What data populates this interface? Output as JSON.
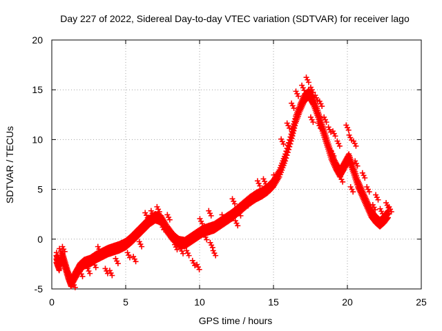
{
  "chart_data": {
    "type": "scatter",
    "title": "Day 227 of 2022, Sidereal Day-to-day VTEC variation (SDTVAR) for receiver lago",
    "xlabel": "GPS time / hours",
    "ylabel": "SDTVAR / TECUs",
    "xlim": [
      0,
      25
    ],
    "ylim": [
      -5,
      20
    ],
    "x_ticks": [
      0,
      5,
      10,
      15,
      20,
      25
    ],
    "y_ticks": [
      -5,
      0,
      5,
      10,
      15,
      20
    ],
    "grid": true,
    "marker": "+",
    "color": "#ff0000",
    "series": [
      {
        "name": "SDTVAR",
        "trace": [
          [
            0.3,
            -2.0
          ],
          [
            0.5,
            -2.8
          ],
          [
            0.7,
            -1.6
          ],
          [
            0.9,
            -2.6
          ],
          [
            1.1,
            -3.6
          ],
          [
            1.3,
            -4.4
          ],
          [
            1.6,
            -3.6
          ],
          [
            1.9,
            -2.8
          ],
          [
            2.2,
            -2.4
          ],
          [
            2.6,
            -2.2
          ],
          [
            3.0,
            -1.8
          ],
          [
            3.4,
            -1.5
          ],
          [
            3.8,
            -1.2
          ],
          [
            4.2,
            -1.0
          ],
          [
            4.6,
            -0.8
          ],
          [
            5.0,
            -0.5
          ],
          [
            5.4,
            0.0
          ],
          [
            5.8,
            0.6
          ],
          [
            6.2,
            1.2
          ],
          [
            6.6,
            1.8
          ],
          [
            7.0,
            2.2
          ],
          [
            7.4,
            2.0
          ],
          [
            7.8,
            1.0
          ],
          [
            8.2,
            0.2
          ],
          [
            8.6,
            -0.3
          ],
          [
            9.0,
            -0.4
          ],
          [
            9.4,
            0.0
          ],
          [
            9.8,
            0.4
          ],
          [
            10.2,
            0.8
          ],
          [
            10.6,
            1.0
          ],
          [
            11.0,
            1.2
          ],
          [
            11.4,
            1.6
          ],
          [
            11.8,
            2.0
          ],
          [
            12.2,
            2.4
          ],
          [
            12.6,
            2.9
          ],
          [
            13.0,
            3.4
          ],
          [
            13.4,
            3.9
          ],
          [
            13.8,
            4.3
          ],
          [
            14.2,
            4.6
          ],
          [
            14.6,
            5.0
          ],
          [
            15.0,
            5.6
          ],
          [
            15.4,
            6.6
          ],
          [
            15.8,
            8.2
          ],
          [
            16.2,
            10.2
          ],
          [
            16.5,
            12.0
          ],
          [
            16.8,
            13.2
          ],
          [
            17.1,
            14.2
          ],
          [
            17.4,
            14.6
          ],
          [
            17.7,
            13.8
          ],
          [
            18.0,
            12.6
          ],
          [
            18.3,
            11.2
          ],
          [
            18.6,
            9.8
          ],
          [
            18.9,
            8.4
          ],
          [
            19.2,
            7.4
          ],
          [
            19.5,
            6.6
          ],
          [
            19.8,
            7.4
          ],
          [
            20.1,
            8.2
          ],
          [
            20.4,
            7.0
          ],
          [
            20.7,
            5.6
          ],
          [
            21.0,
            4.6
          ],
          [
            21.3,
            3.6
          ],
          [
            21.6,
            2.6
          ],
          [
            21.9,
            2.0
          ],
          [
            22.2,
            1.6
          ],
          [
            22.5,
            2.0
          ],
          [
            22.8,
            2.6
          ]
        ],
        "offshoots": [
          [
            0.4,
            -1.6
          ],
          [
            0.6,
            -1.2
          ],
          [
            0.8,
            -1.0
          ],
          [
            1.0,
            -3.0
          ],
          [
            1.2,
            -4.0
          ],
          [
            1.5,
            -4.6
          ],
          [
            2.0,
            -3.5
          ],
          [
            2.5,
            -3.2
          ],
          [
            2.9,
            -2.6
          ],
          [
            3.2,
            -1.0
          ],
          [
            3.7,
            -3.2
          ],
          [
            4.0,
            -3.4
          ],
          [
            4.4,
            -2.2
          ],
          [
            5.2,
            -1.6
          ],
          [
            5.6,
            -2.0
          ],
          [
            6.0,
            -0.5
          ],
          [
            6.4,
            2.4
          ],
          [
            6.8,
            2.6
          ],
          [
            7.2,
            3.0
          ],
          [
            7.5,
            1.2
          ],
          [
            7.9,
            2.2
          ],
          [
            8.0,
            0.8
          ],
          [
            8.4,
            -0.8
          ],
          [
            8.8,
            -1.2
          ],
          [
            9.2,
            -1.4
          ],
          [
            9.6,
            -2.4
          ],
          [
            9.9,
            -2.8
          ],
          [
            10.1,
            1.8
          ],
          [
            10.4,
            0.2
          ],
          [
            10.8,
            -0.6
          ],
          [
            11.0,
            -1.4
          ],
          [
            10.7,
            2.6
          ],
          [
            11.6,
            2.2
          ],
          [
            12.3,
            3.8
          ],
          [
            12.7,
            2.6
          ],
          [
            12.5,
            1.6
          ],
          [
            13.2,
            3.6
          ],
          [
            14.0,
            5.6
          ],
          [
            14.4,
            5.8
          ],
          [
            15.1,
            6.2
          ],
          [
            15.6,
            9.8
          ],
          [
            16.0,
            11.4
          ],
          [
            16.3,
            13.4
          ],
          [
            16.6,
            14.6
          ],
          [
            17.0,
            15.2
          ],
          [
            17.3,
            16.0
          ],
          [
            17.6,
            15.0
          ],
          [
            17.9,
            14.2
          ],
          [
            18.2,
            13.6
          ],
          [
            18.5,
            12.0
          ],
          [
            18.8,
            11.0
          ],
          [
            19.1,
            10.6
          ],
          [
            19.4,
            9.6
          ],
          [
            19.0,
            8.6
          ],
          [
            19.6,
            6.0
          ],
          [
            20.0,
            11.2
          ],
          [
            20.2,
            10.2
          ],
          [
            20.5,
            9.6
          ],
          [
            20.3,
            5.0
          ],
          [
            20.6,
            7.6
          ],
          [
            21.1,
            6.4
          ],
          [
            21.4,
            5.0
          ],
          [
            21.8,
            3.2
          ],
          [
            22.0,
            4.2
          ],
          [
            22.3,
            2.8
          ],
          [
            22.7,
            3.4
          ],
          [
            22.9,
            3.0
          ],
          [
            21.5,
            3.0
          ],
          [
            17.6,
            12.0
          ],
          [
            18.1,
            11.4
          ]
        ]
      }
    ]
  }
}
